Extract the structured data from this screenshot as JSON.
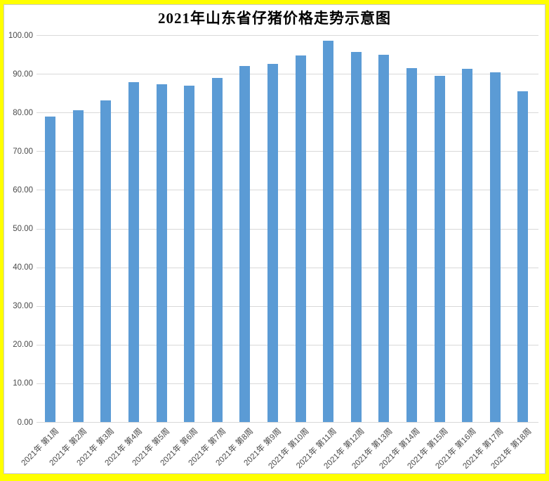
{
  "page": {
    "frame_color": "#FFFF00",
    "plot_background": "#FFFFFF"
  },
  "chart_data": {
    "type": "bar",
    "title": "2021年山东省仔猪价格走势示意图",
    "categories": [
      "2021年 第1周",
      "2021年 第2周",
      "2021年 第3周",
      "2021年 第4周",
      "2021年 第5周",
      "2021年 第6周",
      "2021年 第7周",
      "2021年 第8周",
      "2021年 第9周",
      "2021年 第10周",
      "2021年 第11周",
      "2021年 第12周",
      "2021年 第13周",
      "2021年 第14周",
      "2021年 第15周",
      "2021年 第16周",
      "2021年 第17周",
      "2021年 第18周"
    ],
    "values": [
      79.1,
      80.7,
      83.2,
      88.0,
      87.4,
      87.1,
      89.0,
      92.1,
      92.6,
      94.8,
      98.6,
      95.7,
      95.0,
      91.6,
      89.5,
      91.3,
      90.5,
      85.6
    ],
    "xlabel": "",
    "ylabel": "",
    "ylim": [
      0,
      100
    ],
    "ytick_step": 10,
    "ytick_labels": [
      "0.00",
      "10.00",
      "20.00",
      "30.00",
      "40.00",
      "50.00",
      "60.00",
      "70.00",
      "80.00",
      "90.00",
      "100.00"
    ],
    "grid": true,
    "legend": "none",
    "bar_color": "#5B9BD5",
    "gridline_color": "#D9D9D9",
    "axis_text_color": "#4a4a4a"
  }
}
